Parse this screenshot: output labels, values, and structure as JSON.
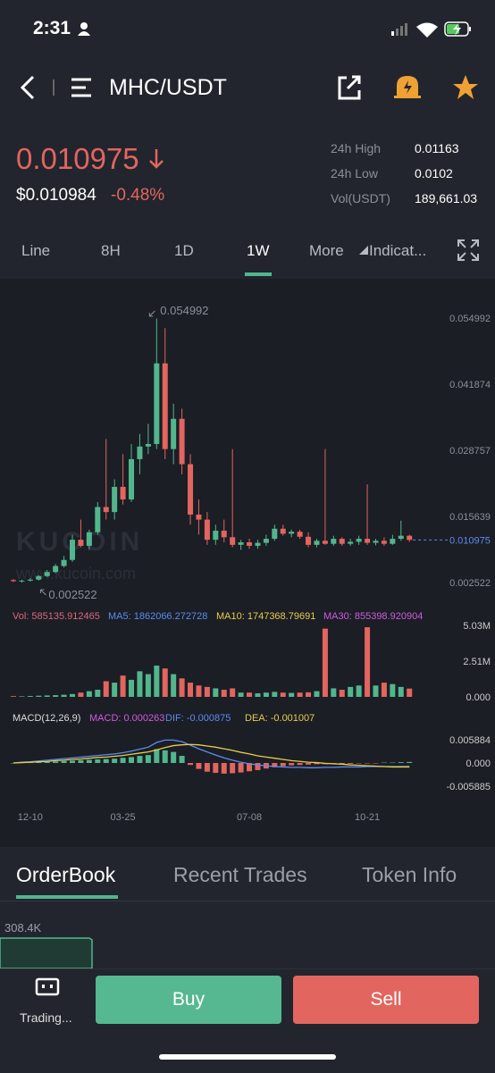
{
  "status_bar": {
    "time": "2:31"
  },
  "header": {
    "pair": "MHC/USDT"
  },
  "price": {
    "last": "0.010975",
    "usd": "$0.010984",
    "change": "-0.48%"
  },
  "stats": [
    {
      "label": "24h High",
      "value": "0.01163"
    },
    {
      "label": "24h Low",
      "value": "0.0102"
    },
    {
      "label": "Vol(USDT)",
      "value": "189,661.03"
    }
  ],
  "tabs": [
    "Line",
    "8H",
    "1D",
    "1W",
    "More",
    "Indicat..."
  ],
  "watermark": {
    "brand": "KUCOIN",
    "url": "www.kucoin.com"
  },
  "legend": {
    "vol": "Vol: 585135.912465",
    "ma5": "MA5: 1862066.272728",
    "ma10": "MA10: 1747368.79691",
    "ma30": "MA30: 855398.920904",
    "macd_title": "MACD(12,26,9)",
    "macd": "MACD: 0.000263",
    "dif": "DIF: -0.000875",
    "dea": "DEA: -0.001007"
  },
  "chart_data": {
    "type": "candlestick",
    "categories": [
      null,
      null,
      "12-10",
      null,
      null,
      null,
      null,
      null,
      null,
      null,
      null,
      null,
      null,
      "03-25",
      null,
      null,
      null,
      null,
      null,
      null,
      null,
      null,
      null,
      null,
      null,
      null,
      null,
      null,
      "07-08",
      null,
      null,
      null,
      null,
      null,
      null,
      null,
      null,
      null,
      null,
      null,
      null,
      null,
      "10-21",
      null,
      null,
      null,
      null,
      null
    ],
    "open": [
      0.003,
      0.0028,
      0.0029,
      0.0031,
      0.0038,
      0.0046,
      0.0058,
      0.007,
      0.011,
      0.0098,
      0.0125,
      0.0175,
      0.0165,
      0.0215,
      0.019,
      0.027,
      0.0295,
      0.03,
      0.046,
      0.029,
      0.035,
      0.026,
      0.016,
      0.015,
      0.011,
      0.0128,
      0.0115,
      0.01,
      0.0105,
      0.0098,
      0.0104,
      0.0112,
      0.0132,
      0.0122,
      0.0126,
      0.0116,
      0.01,
      0.0108,
      0.0102,
      0.0112,
      0.0102,
      0.0106,
      0.0112,
      0.0104,
      0.0108,
      0.0102,
      0.0112,
      0.0118
    ],
    "high": [
      0.0032,
      0.0031,
      0.0034,
      0.004,
      0.005,
      0.0062,
      0.0078,
      0.012,
      0.015,
      0.013,
      0.0185,
      0.031,
      0.023,
      0.028,
      0.03,
      0.032,
      0.034,
      0.0549,
      0.053,
      0.038,
      0.037,
      0.028,
      0.019,
      0.0165,
      0.014,
      0.015,
      0.029,
      0.011,
      0.0112,
      0.011,
      0.012,
      0.014,
      0.014,
      0.013,
      0.013,
      0.0125,
      0.0112,
      0.029,
      0.0118,
      0.0115,
      0.0112,
      0.0118,
      0.022,
      0.0112,
      0.0115,
      0.012,
      0.0148,
      0.012
    ],
    "low": [
      0.0026,
      0.0025,
      0.0027,
      0.0029,
      0.0036,
      0.0044,
      0.0055,
      0.0066,
      0.0095,
      0.009,
      0.012,
      0.015,
      0.015,
      0.018,
      0.0185,
      0.024,
      0.028,
      0.029,
      0.027,
      0.026,
      0.024,
      0.014,
      0.012,
      0.01,
      0.01,
      0.0105,
      0.0095,
      0.009,
      0.0092,
      0.0092,
      0.0098,
      0.0108,
      0.0118,
      0.0115,
      0.0112,
      0.0095,
      0.0095,
      0.01,
      0.0098,
      0.0098,
      0.0098,
      0.01,
      0.01,
      0.0099,
      0.0098,
      0.01,
      0.0108,
      0.0106
    ],
    "close": [
      0.0028,
      0.0029,
      0.0031,
      0.0038,
      0.0046,
      0.0058,
      0.007,
      0.011,
      0.0098,
      0.0125,
      0.0175,
      0.0165,
      0.0215,
      0.019,
      0.027,
      0.0295,
      0.03,
      0.046,
      0.029,
      0.035,
      0.026,
      0.016,
      0.015,
      0.011,
      0.0128,
      0.0115,
      0.01,
      0.0105,
      0.0098,
      0.0104,
      0.0112,
      0.0132,
      0.0122,
      0.0126,
      0.0116,
      0.01,
      0.0108,
      0.0102,
      0.0112,
      0.0102,
      0.0106,
      0.0112,
      0.0104,
      0.0108,
      0.0102,
      0.0112,
      0.0118,
      0.010975
    ],
    "ylim": [
      0.002522,
      0.054992
    ],
    "yticks": [
      0.054992,
      0.041874,
      0.028757,
      0.015639,
      0.002522
    ],
    "max_label": 0.054992,
    "min_label": 0.002522,
    "last_price": 0.010975,
    "volume": [
      50000,
      40000,
      60000,
      80000,
      100000,
      120000,
      150000,
      200000,
      300000,
      400000,
      500000,
      1100000,
      1000000,
      1500000,
      1200000,
      1800000,
      1600000,
      2200000,
      2000000,
      1600000,
      1300000,
      1000000,
      800000,
      700000,
      600000,
      500000,
      600000,
      300000,
      300000,
      250000,
      300000,
      350000,
      300000,
      280000,
      300000,
      320000,
      400000,
      4800000,
      600000,
      500000,
      700000,
      800000,
      4900000,
      800000,
      1000000,
      900000,
      700000,
      585135.912465
    ],
    "volume_ylim": [
      0,
      5030000
    ],
    "volume_ticks": [
      {
        "value": 5030000,
        "label": "5.03M"
      },
      {
        "value": 2510000,
        "label": "2.51M"
      },
      {
        "value": 0,
        "label": "0.000"
      }
    ],
    "macd": [
      0,
      0.0001,
      0.0001,
      0.0002,
      0.0003,
      0.0004,
      0.0005,
      0.0006,
      0.0007,
      0.0008,
      0.0009,
      0.001,
      0.0011,
      0.0013,
      0.0015,
      0.0018,
      0.002,
      0.0035,
      0.0032,
      0.0028,
      0.0018,
      -0.0005,
      -0.0015,
      -0.0022,
      -0.0025,
      -0.0027,
      -0.0026,
      -0.0024,
      -0.0021,
      -0.0018,
      -0.0014,
      -0.0011,
      -0.0008,
      -0.0006,
      -0.0005,
      -0.0004,
      -0.0003,
      -0.0003,
      -0.0003,
      -0.0002,
      -0.0002,
      -0.0001,
      -0.0001,
      -0.0001,
      0.0001,
      0.0001,
      0.0002,
      0.000263
    ],
    "dif": [
      0,
      0.0002,
      0.0003,
      0.0005,
      0.0007,
      0.0009,
      0.0011,
      0.0013,
      0.0015,
      0.0017,
      0.0019,
      0.0021,
      0.0023,
      0.0026,
      0.003,
      0.0035,
      0.004,
      0.0052,
      0.0058,
      0.0058,
      0.0054,
      0.0045,
      0.0036,
      0.0028,
      0.002,
      0.0013,
      0.0007,
      0.0002,
      -0.0002,
      -0.0005,
      -0.0007,
      -0.0009,
      -0.001,
      -0.0011,
      -0.0011,
      -0.0012,
      -0.0012,
      -0.0011,
      -0.0011,
      -0.001,
      -0.001,
      -0.001,
      -0.0009,
      -0.0009,
      -0.0009,
      -0.0009,
      -0.0009,
      -0.000875
    ],
    "dea": [
      0,
      0.0001,
      0.0002,
      0.0003,
      0.0004,
      0.0006,
      0.0007,
      0.0009,
      0.001,
      0.0012,
      0.0014,
      0.0015,
      0.0017,
      0.0019,
      0.0022,
      0.0025,
      0.0028,
      0.0033,
      0.0039,
      0.0044,
      0.0046,
      0.0047,
      0.0046,
      0.0043,
      0.004,
      0.0036,
      0.0032,
      0.0027,
      0.0023,
      0.0018,
      0.0015,
      0.0012,
      0.0009,
      0.0006,
      0.0004,
      0.0002,
      0.0001,
      -0.0001,
      -0.0002,
      -0.0003,
      -0.0005,
      -0.0006,
      -0.0007,
      -0.0008,
      -0.0009,
      -0.001,
      -0.001,
      -0.001007
    ],
    "macd_ylim": [
      -0.005885,
      0.005884
    ],
    "macd_ticks": [
      0.005884,
      {
        "value": 0,
        "label": "0.000"
      },
      -0.005885
    ],
    "up_color": "#52b68d",
    "down_color": "#e3655f",
    "dif_color": "#5b8cf0",
    "dea_color": "#e8cd4a"
  },
  "bottom_tabs": [
    "OrderBook",
    "Recent Trades",
    "Token Info"
  ],
  "depth": {
    "label": "308.4K"
  },
  "action_bar": {
    "trading": "Trading...",
    "buy": "Buy",
    "sell": "Sell"
  }
}
